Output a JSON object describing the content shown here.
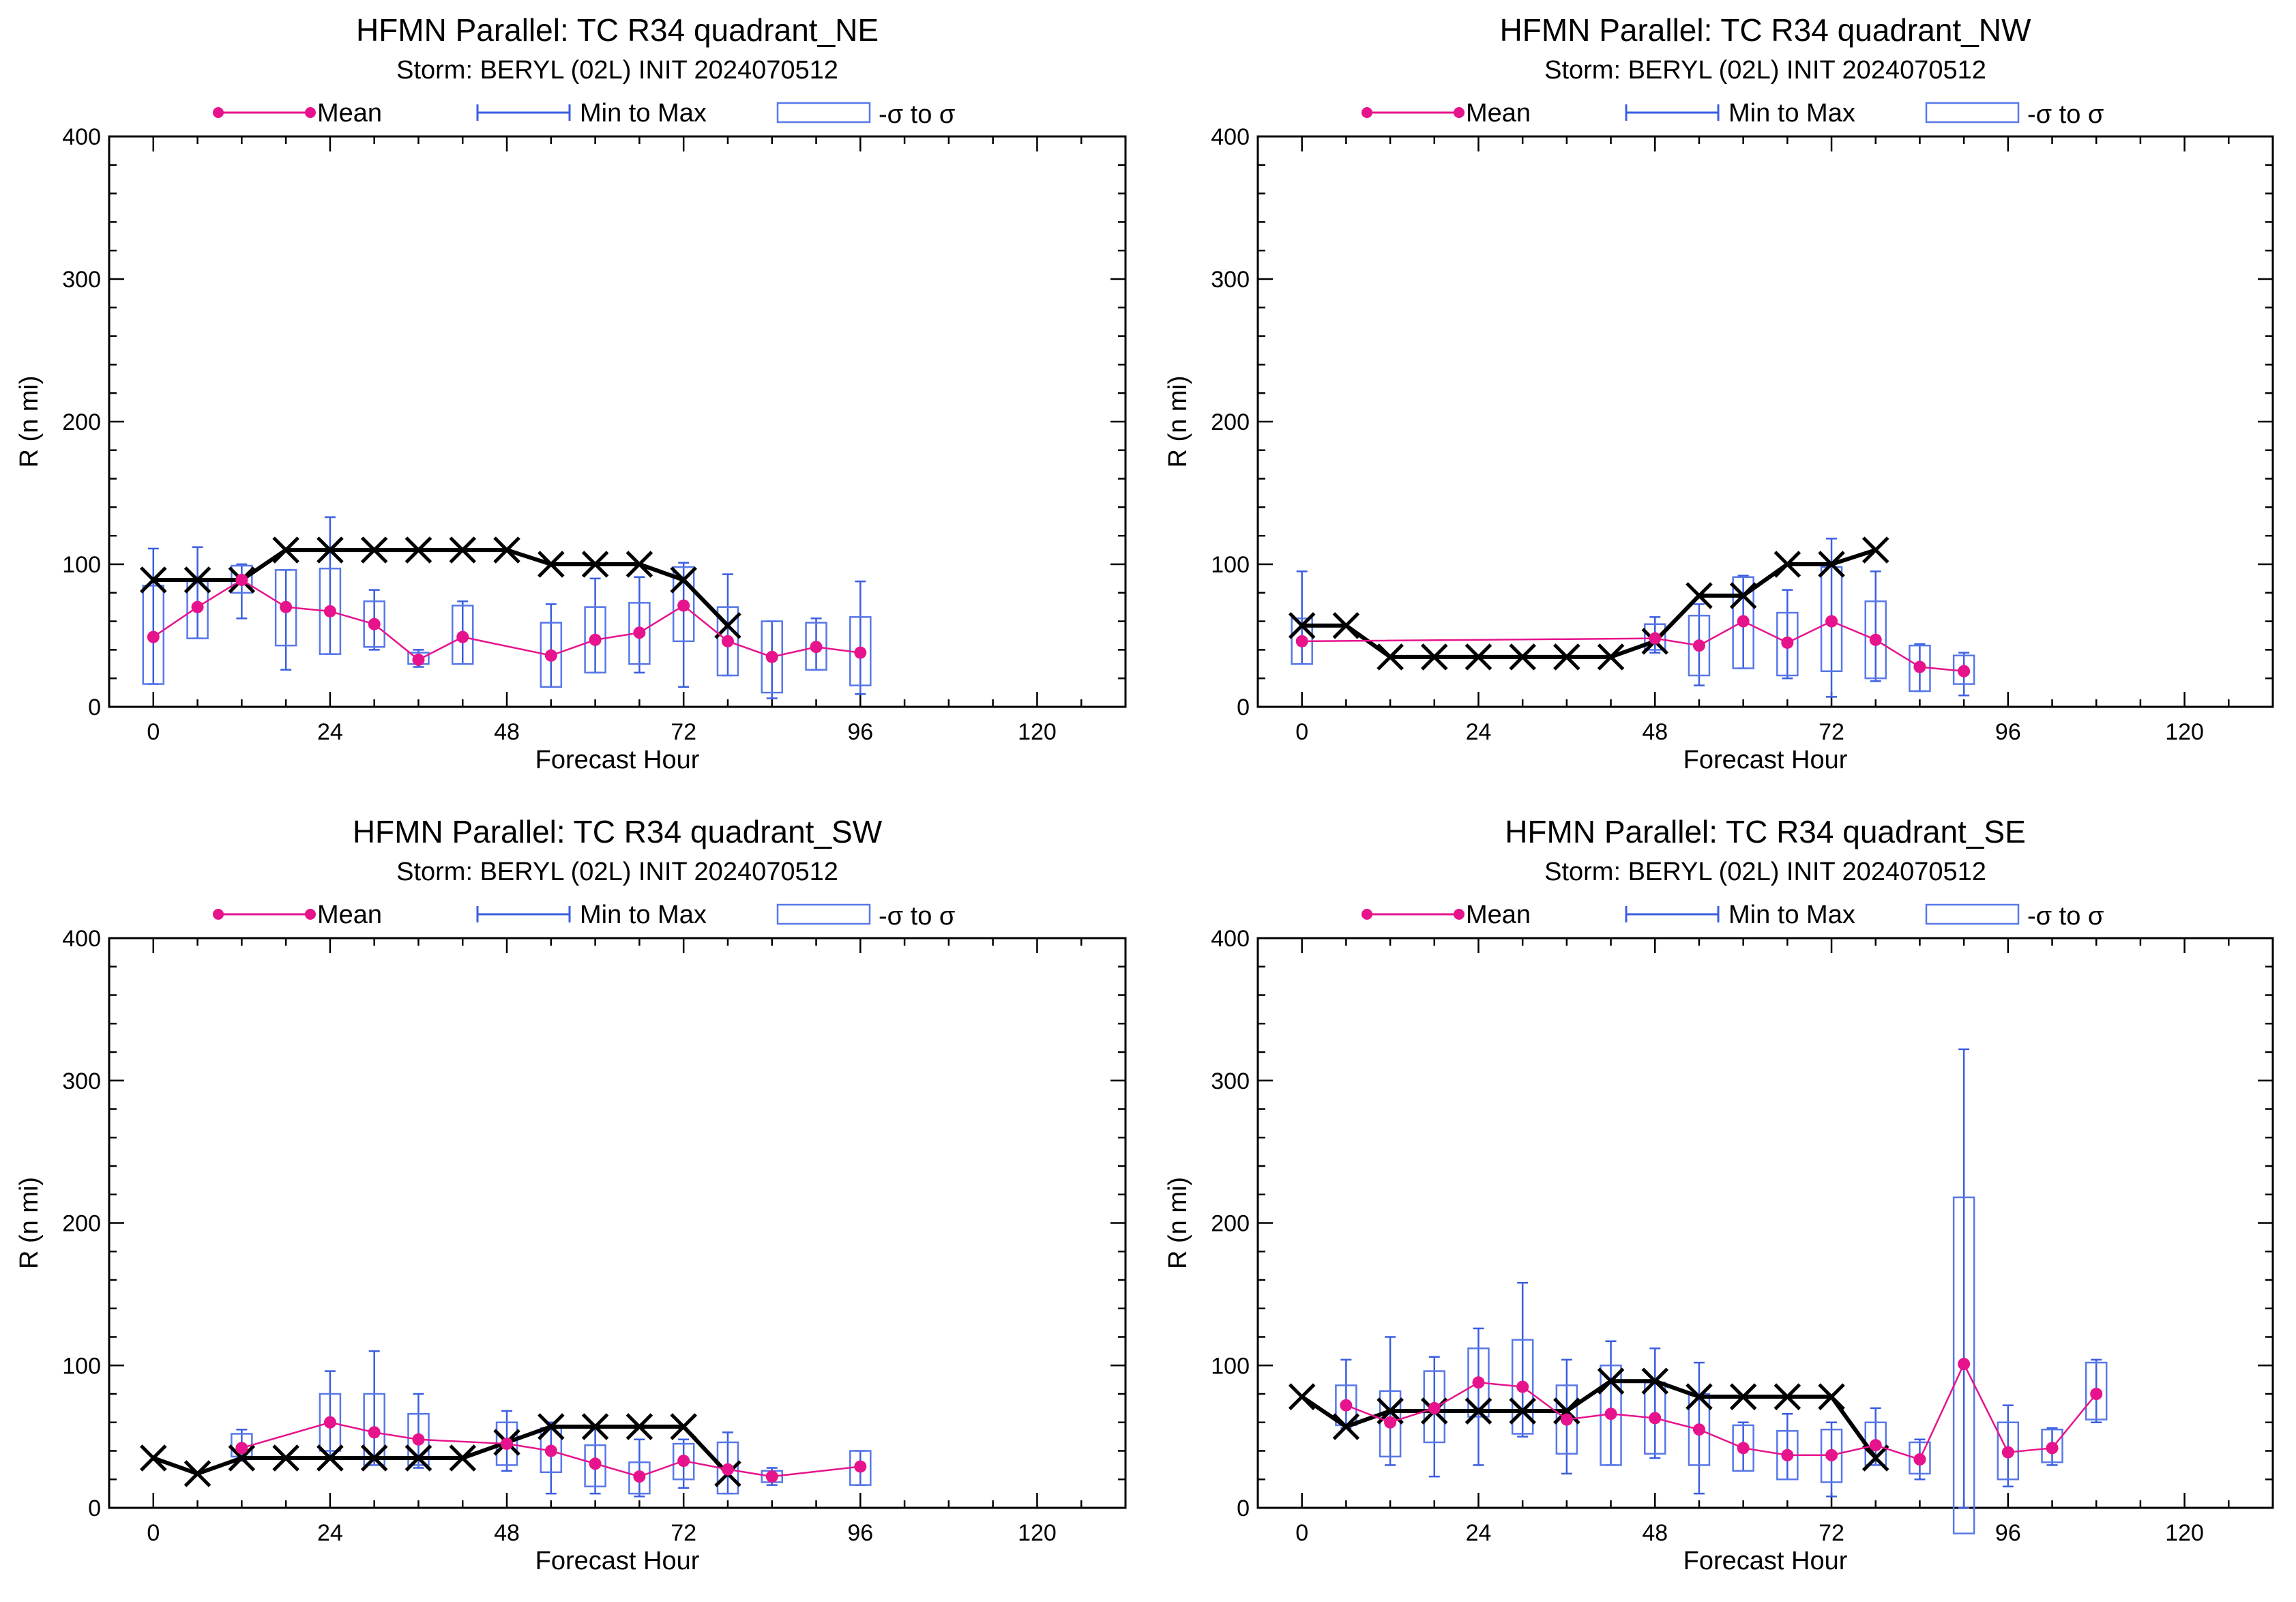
{
  "colors": {
    "mean": "#e6138c",
    "minmax": "#3a5ee0",
    "sigma": "#5878e8",
    "best_track": "#000000",
    "axis": "#000000"
  },
  "chart_data": [
    {
      "type": "box",
      "title": "HFMN Parallel: TC  R34 quadrant_NE",
      "subtitle": "Storm: BERYL (02L) INIT 2024070512",
      "xlabel": "Forecast Hour",
      "ylabel": "R (n mi)",
      "xlim": [
        -6,
        132
      ],
      "ylim": [
        0,
        400
      ],
      "xticks": [
        "0",
        "24",
        "48",
        "72",
        "96",
        "120"
      ],
      "yticks": [
        "0",
        "100",
        "200",
        "300",
        "400"
      ],
      "legend": {
        "mean": "Mean",
        "minmax": "Min to Max",
        "sigma": "-σ to σ",
        "position": "top"
      },
      "best_track": {
        "x": [
          0,
          6,
          12,
          18,
          24,
          30,
          36,
          42,
          48,
          54,
          60,
          66,
          72,
          78
        ],
        "y": [
          89,
          89,
          89,
          110,
          110,
          110,
          110,
          110,
          110,
          100,
          100,
          100,
          89,
          57
        ]
      },
      "boxes": [
        {
          "x": 0,
          "mean": 49,
          "min": 16,
          "max": 111,
          "lo": 16,
          "hi": 85
        },
        {
          "x": 6,
          "mean": 70,
          "min": 48,
          "max": 112,
          "lo": 48,
          "hi": 88
        },
        {
          "x": 12,
          "mean": 89,
          "min": 62,
          "max": 100,
          "lo": 80,
          "hi": 99
        },
        {
          "x": 18,
          "mean": 70,
          "min": 26,
          "max": 96,
          "lo": 43,
          "hi": 96
        },
        {
          "x": 24,
          "mean": 67,
          "min": 37,
          "max": 133,
          "lo": 37,
          "hi": 97
        },
        {
          "x": 30,
          "mean": 58,
          "min": 40,
          "max": 82,
          "lo": 42,
          "hi": 74
        },
        {
          "x": 36,
          "mean": 33,
          "min": 28,
          "max": 40,
          "lo": 30,
          "hi": 38
        },
        {
          "x": 42,
          "mean": 49,
          "min": 30,
          "max": 74,
          "lo": 30,
          "hi": 71
        },
        {
          "x": 54,
          "mean": 36,
          "min": 14,
          "max": 72,
          "lo": 14,
          "hi": 59
        },
        {
          "x": 60,
          "mean": 47,
          "min": 24,
          "max": 90,
          "lo": 24,
          "hi": 70
        },
        {
          "x": 66,
          "mean": 52,
          "min": 24,
          "max": 91,
          "lo": 30,
          "hi": 73
        },
        {
          "x": 72,
          "mean": 71,
          "min": 14,
          "max": 101,
          "lo": 46,
          "hi": 98
        },
        {
          "x": 78,
          "mean": 46,
          "min": 22,
          "max": 93,
          "lo": 22,
          "hi": 70
        },
        {
          "x": 84,
          "mean": 35,
          "min": 6,
          "max": 60,
          "lo": 10,
          "hi": 60
        },
        {
          "x": 90,
          "mean": 42,
          "min": 26,
          "max": 62,
          "lo": 26,
          "hi": 59
        },
        {
          "x": 96,
          "mean": 38,
          "min": 9,
          "max": 88,
          "lo": 15,
          "hi": 63
        }
      ]
    },
    {
      "type": "box",
      "title": "HFMN Parallel: TC  R34 quadrant_NW",
      "subtitle": "Storm: BERYL (02L) INIT 2024070512",
      "xlabel": "Forecast Hour",
      "ylabel": "R (n mi)",
      "xlim": [
        -6,
        132
      ],
      "ylim": [
        0,
        400
      ],
      "xticks": [
        "0",
        "24",
        "48",
        "72",
        "96",
        "120"
      ],
      "yticks": [
        "0",
        "100",
        "200",
        "300",
        "400"
      ],
      "legend": {
        "mean": "Mean",
        "minmax": "Min to Max",
        "sigma": "-σ to σ",
        "position": "top"
      },
      "best_track": {
        "x": [
          0,
          6,
          12,
          18,
          24,
          30,
          36,
          42,
          48,
          54,
          60,
          66,
          72,
          78
        ],
        "y": [
          57,
          57,
          35,
          35,
          35,
          35,
          35,
          35,
          46,
          78,
          78,
          100,
          100,
          110
        ]
      },
      "boxes": [
        {
          "x": 0,
          "mean": 46,
          "min": 30,
          "max": 95,
          "lo": 30,
          "hi": 62
        },
        {
          "x": 48,
          "mean": 48,
          "min": 38,
          "max": 63,
          "lo": 40,
          "hi": 58
        },
        {
          "x": 54,
          "mean": 43,
          "min": 15,
          "max": 72,
          "lo": 22,
          "hi": 64
        },
        {
          "x": 60,
          "mean": 60,
          "min": 27,
          "max": 92,
          "lo": 27,
          "hi": 91
        },
        {
          "x": 66,
          "mean": 45,
          "min": 20,
          "max": 82,
          "lo": 22,
          "hi": 66
        },
        {
          "x": 72,
          "mean": 60,
          "min": 7,
          "max": 118,
          "lo": 25,
          "hi": 98
        },
        {
          "x": 78,
          "mean": 47,
          "min": 18,
          "max": 95,
          "lo": 20,
          "hi": 74
        },
        {
          "x": 84,
          "mean": 28,
          "min": 11,
          "max": 44,
          "lo": 11,
          "hi": 43
        },
        {
          "x": 90,
          "mean": 25,
          "min": 8,
          "max": 38,
          "lo": 16,
          "hi": 36
        }
      ]
    },
    {
      "type": "box",
      "title": "HFMN Parallel: TC  R34 quadrant_SW",
      "subtitle": "Storm: BERYL (02L) INIT 2024070512",
      "xlabel": "Forecast Hour",
      "ylabel": "R (n mi)",
      "xlim": [
        -6,
        132
      ],
      "ylim": [
        0,
        400
      ],
      "xticks": [
        "0",
        "24",
        "48",
        "72",
        "96",
        "120"
      ],
      "yticks": [
        "0",
        "100",
        "200",
        "300",
        "400"
      ],
      "legend": {
        "mean": "Mean",
        "minmax": "Min to Max",
        "sigma": "-σ to σ",
        "position": "top"
      },
      "best_track": {
        "x": [
          0,
          6,
          12,
          18,
          24,
          30,
          36,
          42,
          48,
          54,
          60,
          66,
          72,
          78
        ],
        "y": [
          35,
          24,
          35,
          35,
          35,
          35,
          35,
          35,
          46,
          57,
          57,
          57,
          57,
          24
        ]
      },
      "boxes": [
        {
          "x": 12,
          "mean": 42,
          "min": 33,
          "max": 55,
          "lo": 36,
          "hi": 52
        },
        {
          "x": 24,
          "mean": 60,
          "min": 34,
          "max": 96,
          "lo": 40,
          "hi": 80
        },
        {
          "x": 30,
          "mean": 53,
          "min": 30,
          "max": 110,
          "lo": 30,
          "hi": 80
        },
        {
          "x": 36,
          "mean": 48,
          "min": 28,
          "max": 80,
          "lo": 30,
          "hi": 66
        },
        {
          "x": 48,
          "mean": 45,
          "min": 26,
          "max": 68,
          "lo": 30,
          "hi": 60
        },
        {
          "x": 54,
          "mean": 40,
          "min": 10,
          "max": 60,
          "lo": 25,
          "hi": 56
        },
        {
          "x": 60,
          "mean": 31,
          "min": 10,
          "max": 56,
          "lo": 15,
          "hi": 44
        },
        {
          "x": 66,
          "mean": 22,
          "min": 8,
          "max": 48,
          "lo": 10,
          "hi": 32
        },
        {
          "x": 72,
          "mean": 33,
          "min": 14,
          "max": 48,
          "lo": 20,
          "hi": 45
        },
        {
          "x": 78,
          "mean": 27,
          "min": 10,
          "max": 53,
          "lo": 10,
          "hi": 46
        },
        {
          "x": 84,
          "mean": 22,
          "min": 16,
          "max": 28,
          "lo": 18,
          "hi": 26
        },
        {
          "x": 96,
          "mean": 29,
          "min": 16,
          "max": 40,
          "lo": 16,
          "hi": 40
        }
      ]
    },
    {
      "type": "box",
      "title": "HFMN Parallel: TC  R34 quadrant_SE",
      "subtitle": "Storm: BERYL (02L) INIT 2024070512",
      "xlabel": "Forecast Hour",
      "ylabel": "R (n mi)",
      "xlim": [
        -6,
        132
      ],
      "ylim": [
        0,
        400
      ],
      "xticks": [
        "0",
        "24",
        "48",
        "72",
        "96",
        "120"
      ],
      "yticks": [
        "0",
        "100",
        "200",
        "300",
        "400"
      ],
      "legend": {
        "mean": "Mean",
        "minmax": "Min to Max",
        "sigma": "-σ to σ",
        "position": "top"
      },
      "best_track": {
        "x": [
          0,
          6,
          12,
          18,
          24,
          30,
          36,
          42,
          48,
          54,
          60,
          66,
          72,
          78
        ],
        "y": [
          78,
          57,
          68,
          68,
          68,
          68,
          68,
          89,
          89,
          78,
          78,
          78,
          78,
          35
        ]
      },
      "boxes": [
        {
          "x": 6,
          "mean": 72,
          "min": 56,
          "max": 104,
          "lo": 58,
          "hi": 86
        },
        {
          "x": 12,
          "mean": 60,
          "min": 30,
          "max": 120,
          "lo": 36,
          "hi": 82
        },
        {
          "x": 18,
          "mean": 70,
          "min": 22,
          "max": 106,
          "lo": 46,
          "hi": 96
        },
        {
          "x": 24,
          "mean": 88,
          "min": 30,
          "max": 126,
          "lo": 64,
          "hi": 112
        },
        {
          "x": 30,
          "mean": 85,
          "min": 50,
          "max": 158,
          "lo": 52,
          "hi": 118
        },
        {
          "x": 36,
          "mean": 62,
          "min": 24,
          "max": 104,
          "lo": 38,
          "hi": 86
        },
        {
          "x": 42,
          "mean": 66,
          "min": 30,
          "max": 117,
          "lo": 30,
          "hi": 100
        },
        {
          "x": 48,
          "mean": 63,
          "min": 35,
          "max": 112,
          "lo": 38,
          "hi": 88
        },
        {
          "x": 54,
          "mean": 55,
          "min": 10,
          "max": 102,
          "lo": 30,
          "hi": 80
        },
        {
          "x": 60,
          "mean": 42,
          "min": 26,
          "max": 60,
          "lo": 26,
          "hi": 58
        },
        {
          "x": 66,
          "mean": 37,
          "min": 20,
          "max": 66,
          "lo": 20,
          "hi": 54
        },
        {
          "x": 72,
          "mean": 37,
          "min": 8,
          "max": 60,
          "lo": 18,
          "hi": 55
        },
        {
          "x": 78,
          "mean": 44,
          "min": 30,
          "max": 70,
          "lo": 30,
          "hi": 60
        },
        {
          "x": 84,
          "mean": 34,
          "min": 20,
          "max": 48,
          "lo": 24,
          "hi": 46
        },
        {
          "x": 90,
          "mean": 101,
          "min": 0,
          "max": 322,
          "lo": -18,
          "hi": 218
        },
        {
          "x": 96,
          "mean": 39,
          "min": 15,
          "max": 72,
          "lo": 20,
          "hi": 60
        },
        {
          "x": 102,
          "mean": 42,
          "min": 30,
          "max": 56,
          "lo": 32,
          "hi": 55
        },
        {
          "x": 108,
          "mean": 80,
          "min": 60,
          "max": 104,
          "lo": 62,
          "hi": 102
        }
      ]
    }
  ]
}
